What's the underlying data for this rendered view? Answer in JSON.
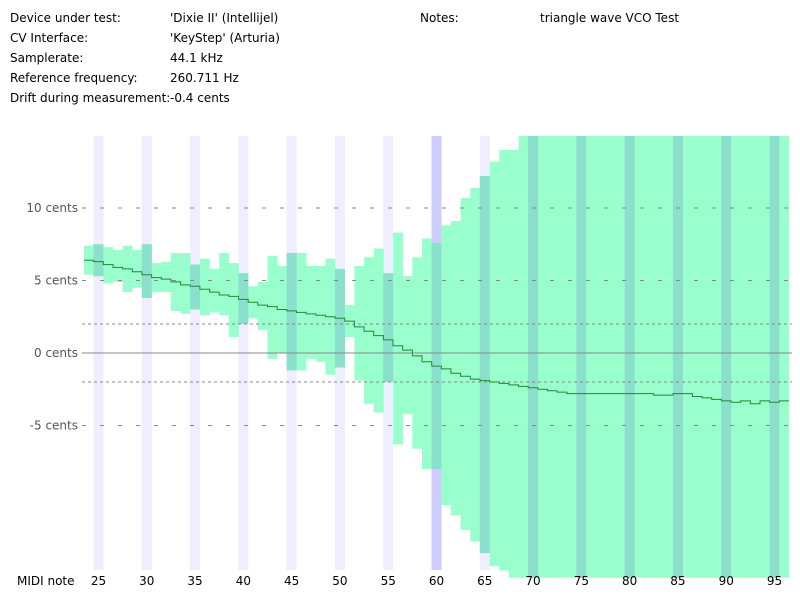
{
  "info": {
    "rows": [
      {
        "label": "Device under test:",
        "value": "'Dixie II' (Intellijel)"
      },
      {
        "label": "CV Interface:",
        "value": "'KeyStep' (Arturia)"
      },
      {
        "label": "Samplerate:",
        "value": "44.1 kHz"
      },
      {
        "label": "Reference frequency:",
        "value": "260.711 Hz"
      },
      {
        "label": "Drift during measurement:",
        "value": "-0.4 cents"
      }
    ],
    "notes_label": "Notes:",
    "notes_value": "triangle wave VCO Test"
  },
  "colors": {
    "band": "#99ffcc",
    "band_overlap": "#88ddcc",
    "line": "#228833",
    "octave_stripe": "#eeeeff",
    "reference_stripe": "#ccccff",
    "grid": "#888888",
    "zero_line": "#888888"
  },
  "chart_data": {
    "type": "line",
    "title": "",
    "xlabel": "MIDI note",
    "ylabel": "",
    "x_ticks": [
      25,
      30,
      35,
      40,
      45,
      50,
      55,
      60,
      65,
      70,
      75,
      80,
      85,
      90,
      95
    ],
    "y_ticks": [
      {
        "value": 10,
        "label": "10 cents"
      },
      {
        "value": 5,
        "label": "5 cents"
      },
      {
        "value": 0,
        "label": "0 cents"
      },
      {
        "value": -5,
        "label": "-5 cents"
      }
    ],
    "xlim": [
      24.2,
      96.6
    ],
    "ylim": [
      -16,
      15
    ],
    "tolerance_lines": [
      2,
      -2
    ],
    "reference_note": 60,
    "octave_notes": [
      24,
      29,
      34,
      39,
      44,
      49,
      54,
      59,
      64,
      69,
      74,
      79,
      84,
      89,
      94
    ],
    "series": [
      {
        "values": [
          {
            "note": 24,
            "mean": 6.4,
            "lo": 5.4,
            "hi": 7.4
          },
          {
            "note": 25,
            "mean": 6.3,
            "lo": 5.3,
            "hi": 7.5
          },
          {
            "note": 26,
            "mean": 6.1,
            "lo": 4.8,
            "hi": 7.3
          },
          {
            "note": 27,
            "mean": 5.9,
            "lo": 4.9,
            "hi": 7.1
          },
          {
            "note": 28,
            "mean": 5.8,
            "lo": 4.2,
            "hi": 7.4
          },
          {
            "note": 29,
            "mean": 5.6,
            "lo": 4.5,
            "hi": 7.1
          },
          {
            "note": 30,
            "mean": 5.4,
            "lo": 3.8,
            "hi": 7.5
          },
          {
            "note": 31,
            "mean": 5.2,
            "lo": 4.2,
            "hi": 6.2
          },
          {
            "note": 32,
            "mean": 5.1,
            "lo": 4.2,
            "hi": 6.3
          },
          {
            "note": 33,
            "mean": 4.9,
            "lo": 2.9,
            "hi": 6.9
          },
          {
            "note": 34,
            "mean": 4.7,
            "lo": 2.7,
            "hi": 6.9
          },
          {
            "note": 35,
            "mean": 4.6,
            "lo": 3.0,
            "hi": 6.1
          },
          {
            "note": 36,
            "mean": 4.4,
            "lo": 2.6,
            "hi": 6.5
          },
          {
            "note": 37,
            "mean": 4.2,
            "lo": 2.8,
            "hi": 5.8
          },
          {
            "note": 38,
            "mean": 4.0,
            "lo": 2.6,
            "hi": 6.9
          },
          {
            "note": 39,
            "mean": 3.9,
            "lo": 1.1,
            "hi": 6.2
          },
          {
            "note": 40,
            "mean": 3.7,
            "lo": 2.0,
            "hi": 5.5
          },
          {
            "note": 41,
            "mean": 3.5,
            "lo": 2.4,
            "hi": 4.6
          },
          {
            "note": 42,
            "mean": 3.3,
            "lo": 1.6,
            "hi": 4.9
          },
          {
            "note": 43,
            "mean": 3.2,
            "lo": -0.4,
            "hi": 6.7
          },
          {
            "note": 44,
            "mean": 3.0,
            "lo": 0.0,
            "hi": 6.0
          },
          {
            "note": 45,
            "mean": 2.9,
            "lo": -1.2,
            "hi": 6.9
          },
          {
            "note": 46,
            "mean": 2.8,
            "lo": -1.2,
            "hi": 6.9
          },
          {
            "note": 47,
            "mean": 2.7,
            "lo": -0.4,
            "hi": 6.0
          },
          {
            "note": 48,
            "mean": 2.6,
            "lo": -0.6,
            "hi": 6.0
          },
          {
            "note": 49,
            "mean": 2.5,
            "lo": -1.5,
            "hi": 6.5
          },
          {
            "note": 50,
            "mean": 2.4,
            "lo": -1.0,
            "hi": 5.8
          },
          {
            "note": 51,
            "mean": 2.2,
            "lo": 1.1,
            "hi": 3.3
          },
          {
            "note": 52,
            "mean": 1.8,
            "lo": -1.9,
            "hi": 6.0
          },
          {
            "note": 53,
            "mean": 1.5,
            "lo": -3.5,
            "hi": 6.6
          },
          {
            "note": 54,
            "mean": 1.2,
            "lo": -4.1,
            "hi": 7.2
          },
          {
            "note": 55,
            "mean": 0.9,
            "lo": -2.0,
            "hi": 5.5
          },
          {
            "note": 56,
            "mean": 0.5,
            "lo": -6.3,
            "hi": 8.3
          },
          {
            "note": 57,
            "mean": 0.2,
            "lo": -4.2,
            "hi": 5.3
          },
          {
            "note": 58,
            "mean": -0.2,
            "lo": -6.6,
            "hi": 6.6
          },
          {
            "note": 59,
            "mean": -0.6,
            "lo": -8.0,
            "hi": 7.9
          },
          {
            "note": 60,
            "mean": -0.9,
            "lo": -8.0,
            "hi": 7.6
          },
          {
            "note": 61,
            "mean": -1.1,
            "lo": -10.5,
            "hi": 8.8
          },
          {
            "note": 62,
            "mean": -1.4,
            "lo": -11.2,
            "hi": 9.1
          },
          {
            "note": 63,
            "mean": -1.6,
            "lo": -12.2,
            "hi": 10.7
          },
          {
            "note": 64,
            "mean": -1.8,
            "lo": -13.0,
            "hi": 11.4
          },
          {
            "note": 65,
            "mean": -1.9,
            "lo": -13.8,
            "hi": 12.2
          },
          {
            "note": 66,
            "mean": -2.0,
            "lo": -14.7,
            "hi": 13.2
          },
          {
            "note": 67,
            "mean": -2.1,
            "lo": -15.0,
            "hi": 14.0
          },
          {
            "note": 68,
            "mean": -2.2,
            "lo": -15.5,
            "hi": 14.0
          },
          {
            "note": 69,
            "mean": -2.3,
            "lo": -15.5,
            "hi": 15.0
          },
          {
            "note": 70,
            "mean": -2.4,
            "lo": -15.5,
            "hi": 15.0
          },
          {
            "note": 71,
            "mean": -2.5,
            "lo": -15.5,
            "hi": 15.0
          },
          {
            "note": 72,
            "mean": -2.6,
            "lo": -15.5,
            "hi": 15.0
          },
          {
            "note": 73,
            "mean": -2.7,
            "lo": -15.5,
            "hi": 15.0
          },
          {
            "note": 74,
            "mean": -2.8,
            "lo": -15.5,
            "hi": 15.0
          },
          {
            "note": 75,
            "mean": -2.8,
            "lo": -15.5,
            "hi": 15.0
          },
          {
            "note": 76,
            "mean": -2.8,
            "lo": -15.5,
            "hi": 15.0
          },
          {
            "note": 77,
            "mean": -2.8,
            "lo": -15.5,
            "hi": 15.0
          },
          {
            "note": 78,
            "mean": -2.8,
            "lo": -15.5,
            "hi": 15.0
          },
          {
            "note": 79,
            "mean": -2.8,
            "lo": -15.5,
            "hi": 15.0
          },
          {
            "note": 80,
            "mean": -2.8,
            "lo": -15.5,
            "hi": 15.0
          },
          {
            "note": 81,
            "mean": -2.8,
            "lo": -15.5,
            "hi": 15.0
          },
          {
            "note": 82,
            "mean": -2.8,
            "lo": -15.5,
            "hi": 15.0
          },
          {
            "note": 83,
            "mean": -2.9,
            "lo": -15.5,
            "hi": 15.0
          },
          {
            "note": 84,
            "mean": -2.9,
            "lo": -15.5,
            "hi": 15.0
          },
          {
            "note": 85,
            "mean": -2.8,
            "lo": -15.5,
            "hi": 15.0
          },
          {
            "note": 86,
            "mean": -2.8,
            "lo": -15.5,
            "hi": 15.0
          },
          {
            "note": 87,
            "mean": -3.0,
            "lo": -15.5,
            "hi": 15.0
          },
          {
            "note": 88,
            "mean": -3.1,
            "lo": -15.5,
            "hi": 15.0
          },
          {
            "note": 89,
            "mean": -3.2,
            "lo": -15.5,
            "hi": 15.0
          },
          {
            "note": 90,
            "mean": -3.3,
            "lo": -15.5,
            "hi": 15.0
          },
          {
            "note": 91,
            "mean": -3.4,
            "lo": -15.5,
            "hi": 15.0
          },
          {
            "note": 92,
            "mean": -3.3,
            "lo": -15.5,
            "hi": 15.0
          },
          {
            "note": 93,
            "mean": -3.5,
            "lo": -15.5,
            "hi": 15.0
          },
          {
            "note": 94,
            "mean": -3.3,
            "lo": -15.5,
            "hi": 15.0
          },
          {
            "note": 95,
            "mean": -3.4,
            "lo": -15.5,
            "hi": 15.0
          },
          {
            "note": 96,
            "mean": -3.3,
            "lo": -15.5,
            "hi": 15.0
          }
        ]
      }
    ],
    "grid": true,
    "legend": "none"
  }
}
